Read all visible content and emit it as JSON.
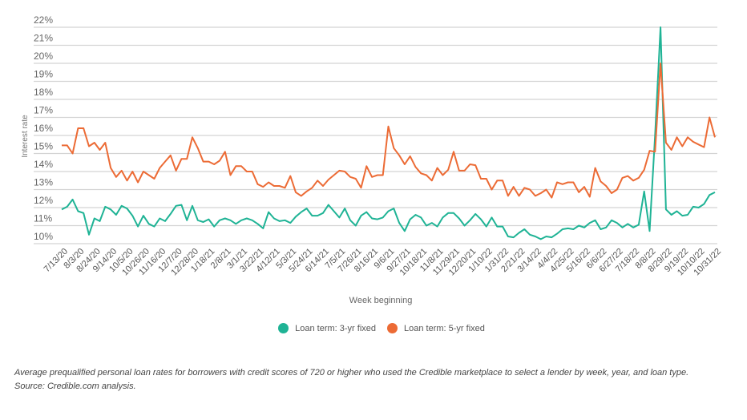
{
  "chart_data": {
    "type": "line",
    "title": "",
    "xlabel": "Week beginning",
    "ylabel": "Interest rate",
    "ylim": [
      10,
      22
    ],
    "yticks": [
      "10%",
      "11%",
      "12%",
      "13%",
      "14%",
      "15%",
      "16%",
      "17%",
      "18%",
      "19%",
      "20%",
      "21%",
      "22%"
    ],
    "grid": true,
    "legend_position": "bottom",
    "x_tick_labels": [
      "7/13/20",
      "8/3/20",
      "8/24/20",
      "9/14/20",
      "10/5/20",
      "10/26/20",
      "11/16/20",
      "12/7/20",
      "12/28/20",
      "1/18/21",
      "2/8/21",
      "3/1/21",
      "3/22/21",
      "4/12/21",
      "5/3/21",
      "5/24/21",
      "6/14/21",
      "7/5/21",
      "7/26/21",
      "8/16/21",
      "9/6/21",
      "9/27/21",
      "10/18/21",
      "11/8/21",
      "11/29/21",
      "12/20/21",
      "1/10/22",
      "1/31/22",
      "2/21/22",
      "3/14/22",
      "4/4/22",
      "4/25/22",
      "5/16/22",
      "6/6/22",
      "6/27/22",
      "7/18/22",
      "8/8/22",
      "8/29/22",
      "9/19/22",
      "10/10/22",
      "10/31/22"
    ],
    "x_start": "7/13/20",
    "x_end": "10/31/22",
    "x_interval": "weekly",
    "series": [
      {
        "name": "Loan term: 3-yr fixed",
        "color": "#1fb395",
        "values": [
          11.9,
          12.05,
          12.45,
          11.8,
          11.7,
          10.5,
          11.4,
          11.25,
          12.05,
          11.9,
          11.6,
          12.1,
          11.95,
          11.55,
          10.95,
          11.55,
          11.1,
          10.95,
          11.4,
          11.25,
          11.65,
          12.1,
          12.15,
          11.3,
          12.1,
          11.3,
          11.2,
          11.35,
          10.95,
          11.3,
          11.4,
          11.3,
          11.1,
          11.3,
          11.4,
          11.3,
          11.1,
          10.85,
          11.75,
          11.4,
          11.25,
          11.3,
          11.15,
          11.5,
          11.75,
          11.95,
          11.55,
          11.55,
          11.7,
          12.15,
          11.8,
          11.45,
          11.95,
          11.3,
          11.0,
          11.55,
          11.75,
          11.4,
          11.35,
          11.45,
          11.8,
          11.95,
          11.15,
          10.7,
          11.35,
          11.6,
          11.45,
          11.0,
          11.15,
          10.95,
          11.45,
          11.7,
          11.7,
          11.4,
          11.0,
          11.3,
          11.65,
          11.35,
          10.95,
          11.45,
          10.95,
          10.95,
          10.4,
          10.35,
          10.6,
          10.8,
          10.5,
          10.4,
          10.25,
          10.4,
          10.35,
          10.55,
          10.8,
          10.85,
          10.8,
          11.0,
          10.9,
          11.15,
          11.3,
          10.8,
          10.9,
          11.3,
          11.15,
          10.9,
          11.1,
          10.9,
          11.05,
          12.9,
          10.7,
          16.0,
          22.0,
          11.9,
          11.6,
          11.8,
          11.55,
          11.6,
          12.05,
          12.0,
          12.2,
          12.7,
          12.85
        ]
      },
      {
        "name": "Loan term: 5-yr fixed",
        "color": "#ec6b35",
        "values": [
          15.45,
          15.45,
          15.0,
          16.4,
          16.4,
          15.4,
          15.6,
          15.2,
          15.6,
          14.2,
          13.7,
          14.05,
          13.5,
          14.0,
          13.4,
          14.0,
          13.8,
          13.6,
          14.2,
          14.55,
          14.9,
          14.05,
          14.7,
          14.7,
          15.9,
          15.3,
          14.55,
          14.55,
          14.4,
          14.6,
          15.1,
          13.8,
          14.3,
          14.3,
          14.0,
          14.0,
          13.3,
          13.15,
          13.4,
          13.2,
          13.2,
          13.1,
          13.75,
          12.85,
          12.65,
          12.9,
          13.1,
          13.5,
          13.2,
          13.55,
          13.8,
          14.05,
          14.0,
          13.7,
          13.6,
          13.1,
          14.3,
          13.7,
          13.8,
          13.8,
          16.5,
          15.3,
          14.9,
          14.4,
          14.85,
          14.25,
          13.9,
          13.8,
          13.5,
          14.2,
          13.8,
          14.1,
          15.1,
          14.05,
          14.05,
          14.4,
          14.35,
          13.6,
          13.6,
          13.0,
          13.5,
          13.5,
          12.65,
          13.15,
          12.65,
          13.1,
          13.0,
          12.65,
          12.8,
          13.0,
          12.55,
          13.4,
          13.3,
          13.4,
          13.4,
          12.85,
          13.15,
          12.6,
          14.2,
          13.45,
          13.2,
          12.8,
          13.0,
          13.65,
          13.75,
          13.5,
          13.65,
          14.1,
          15.15,
          15.1,
          20.0,
          15.6,
          15.2,
          15.9,
          15.4,
          15.9,
          15.65,
          15.5,
          15.35,
          17.0,
          15.9
        ]
      }
    ]
  },
  "caption": "Average prequalified personal loan rates for borrowers with credit scores of 720 or higher who used the Credible marketplace to select a lender by week, year, and loan type. Source: Credible.com analysis."
}
